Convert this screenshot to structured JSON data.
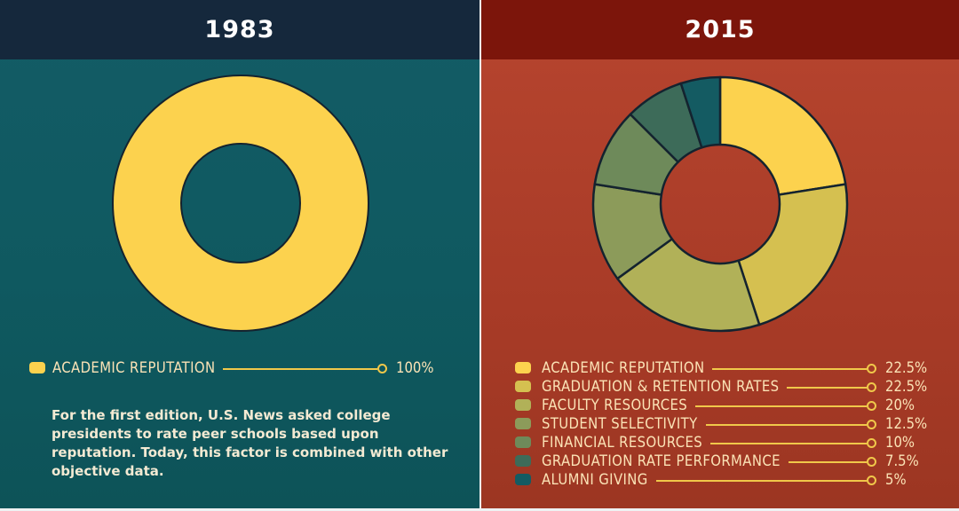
{
  "chart_data": [
    {
      "type": "donut",
      "title": "1983",
      "series": [
        {
          "label": "ACADEMIC REPUTATION",
          "value": 100,
          "value_label": "100%",
          "color": "#fcd24e"
        }
      ]
    },
    {
      "type": "donut",
      "title": "2015",
      "series": [
        {
          "label": "ACADEMIC REPUTATION",
          "value": 22.5,
          "value_label": "22.5%",
          "color": "#fcd24e"
        },
        {
          "label": "GRADUATION & RETENTION RATES",
          "value": 22.5,
          "value_label": "22.5%",
          "color": "#d5c050"
        },
        {
          "label": "FACULTY RESOURCES",
          "value": 20,
          "value_label": "20%",
          "color": "#b1b158"
        },
        {
          "label": "STUDENT SELECTIVITY",
          "value": 12.5,
          "value_label": "12.5%",
          "color": "#8c9b5a"
        },
        {
          "label": "FINANCIAL RESOURCES",
          "value": 10,
          "value_label": "10%",
          "color": "#6e8a5a"
        },
        {
          "label": "GRADUATION RATE PERFORMANCE",
          "value": 7.5,
          "value_label": "7.5%",
          "color": "#3d6b59"
        },
        {
          "label": "ALUMNI GIVING",
          "value": 5,
          "value_label": "5%",
          "color": "#145b62"
        }
      ]
    }
  ],
  "note": "For the first edition, U.S. News asked college presidents to rate peer schools based upon reputation. Today, this factor is combined with other objective data.",
  "colors": {
    "left_bg": "#11595f",
    "left_header": "#15283c",
    "right_bg": "#ad3f2a",
    "right_header": "#7c150b",
    "stroke": "#14232f",
    "line": "#f0c84a"
  }
}
